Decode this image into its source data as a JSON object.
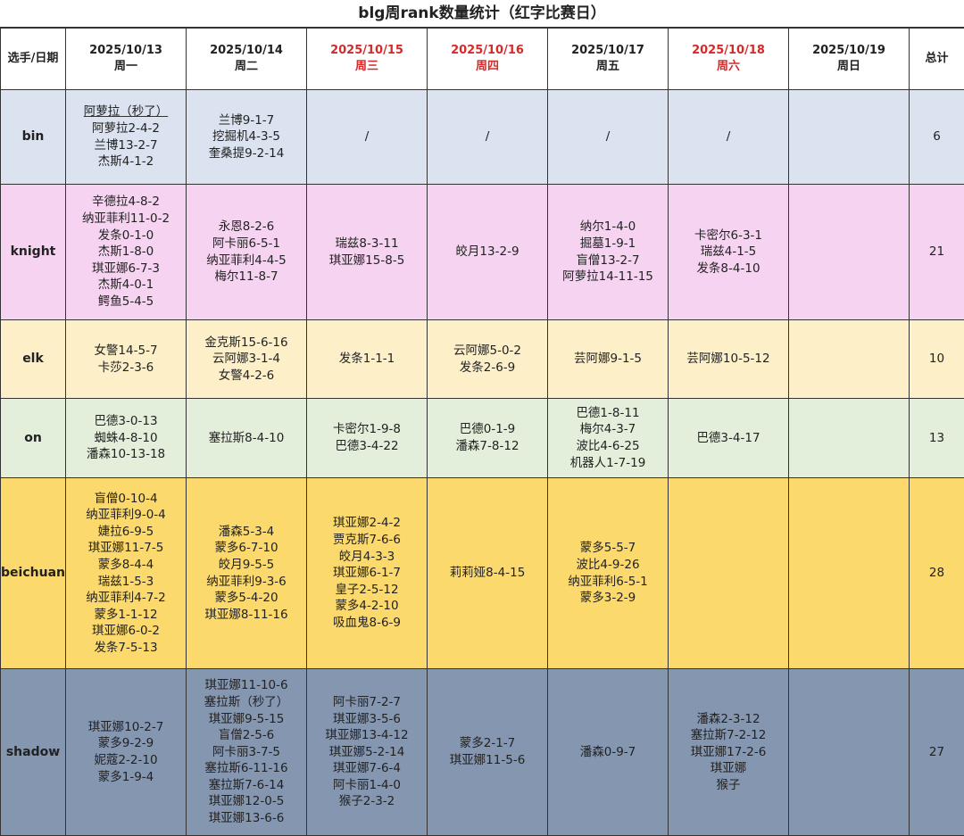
{
  "title": "blg周rank数量统计（红字比赛日）",
  "corner": "选手/日期",
  "total_header": "总计",
  "days": [
    {
      "date": "2025/10/13",
      "weekday": "周一",
      "match_day": false
    },
    {
      "date": "2025/10/14",
      "weekday": "周二",
      "match_day": false
    },
    {
      "date": "2025/10/15",
      "weekday": "周三",
      "match_day": true
    },
    {
      "date": "2025/10/16",
      "weekday": "周四",
      "match_day": true
    },
    {
      "date": "2025/10/17",
      "weekday": "周五",
      "match_day": false
    },
    {
      "date": "2025/10/18",
      "weekday": "周六",
      "match_day": true
    },
    {
      "date": "2025/10/19",
      "weekday": "周日",
      "match_day": false
    }
  ],
  "colors": {
    "match_day": "#d42a2a"
  },
  "rows": [
    {
      "player": "bin",
      "color": "#dbe2f0",
      "total": "6",
      "cells": [
        [
          "阿萝拉（秒了）",
          "阿萝拉2-4-2",
          "兰博13-2-7",
          "杰斯4-1-2"
        ],
        [
          "兰博9-1-7",
          "挖掘机4-3-5",
          "奎桑提9-2-14"
        ],
        [
          "/"
        ],
        [
          "/"
        ],
        [
          "/"
        ],
        [
          "/"
        ],
        []
      ]
    },
    {
      "player": "knight",
      "color": "#f6d4f1",
      "total": "21",
      "cells": [
        [
          "辛德拉4-8-2",
          "纳亚菲利11-0-2",
          "发条0-1-0",
          "杰斯1-8-0",
          "琪亚娜6-7-3",
          "杰斯4-0-1",
          "鳄鱼5-4-5"
        ],
        [
          "永恩8-2-6",
          "阿卡丽6-5-1",
          "纳亚菲利4-4-5",
          "梅尔11-8-7"
        ],
        [
          "瑞兹8-3-11",
          "琪亚娜15-8-5"
        ],
        [
          "皎月13-2-9"
        ],
        [
          "纳尔1-4-0",
          "掘墓1-9-1",
          "盲僧13-2-7",
          "阿萝拉14-11-15"
        ],
        [
          "卡密尔6-3-1",
          "瑞兹4-1-5",
          "发条8-4-10"
        ],
        []
      ]
    },
    {
      "player": "elk",
      "color": "#fdf0c9",
      "total": "10",
      "cells": [
        [
          "女警14-5-7",
          "卡莎2-3-6"
        ],
        [
          "金克斯15-6-16",
          "云阿娜3-1-4",
          "女警4-2-6"
        ],
        [
          "发条1-1-1"
        ],
        [
          "云阿娜5-0-2",
          "发条2-6-9"
        ],
        [
          "芸阿娜9-1-5"
        ],
        [
          "芸阿娜10-5-12"
        ],
        []
      ]
    },
    {
      "player": "on",
      "color": "#e3efdb",
      "total": "13",
      "cells": [
        [
          "巴德3-0-13",
          "蜘蛛4-8-10",
          "潘森10-13-18"
        ],
        [
          "塞拉斯8-4-10"
        ],
        [
          "卡密尔1-9-8",
          "巴德3-4-22"
        ],
        [
          "巴德0-1-9",
          "潘森7-8-12"
        ],
        [
          "巴德1-8-11",
          "梅尔4-3-7",
          "波比4-6-25",
          "机器人1-7-19"
        ],
        [
          "巴德3-4-17"
        ],
        []
      ]
    },
    {
      "player": "beichuan",
      "color": "#fcd96c",
      "total": "28",
      "cells": [
        [
          "盲僧0-10-4",
          "纳亚菲利9-0-4",
          "婕拉6-9-5",
          "琪亚娜11-7-5",
          "蒙多8-4-4",
          "瑞兹1-5-3",
          "纳亚菲利4-7-2",
          "蒙多1-1-12",
          "琪亚娜6-0-2",
          "发条7-5-13"
        ],
        [
          "潘森5-3-4",
          "蒙多6-7-10",
          "皎月9-5-5",
          "纳亚菲利9-3-6",
          "蒙多5-4-20",
          "琪亚娜8-11-16"
        ],
        [
          "琪亚娜2-4-2",
          "贾克斯7-6-6",
          "皎月4-3-3",
          "琪亚娜6-1-7",
          "皇子2-5-12",
          "蒙多4-2-10",
          "吸血鬼8-6-9"
        ],
        [
          "莉莉娅8-4-15"
        ],
        [
          "蒙多5-5-7",
          "波比4-9-26",
          "纳亚菲利6-5-1",
          "蒙多3-2-9"
        ],
        [],
        []
      ]
    },
    {
      "player": "shadow",
      "color": "#8596b0",
      "total": "27",
      "cells": [
        [
          "琪亚娜10-2-7",
          "蒙多9-2-9",
          "妮蔻2-2-10",
          "蒙多1-9-4"
        ],
        [
          "琪亚娜11-10-6",
          "塞拉斯（秒了）",
          "琪亚娜9-5-15",
          "盲僧2-5-6",
          "阿卡丽3-7-5",
          "塞拉斯6-11-16",
          "塞拉斯7-6-14",
          "琪亚娜12-0-5",
          "琪亚娜13-6-6"
        ],
        [
          "阿卡丽7-2-7",
          "琪亚娜3-5-6",
          "琪亚娜13-4-12",
          "琪亚娜5-2-14",
          "琪亚娜7-6-4",
          "阿卡丽1-4-0",
          "猴子2-3-2"
        ],
        [
          "蒙多2-1-7",
          "琪亚娜11-5-6"
        ],
        [
          "潘森0-9-7"
        ],
        [
          "潘森2-3-12",
          "塞拉斯7-2-12",
          "琪亚娜17-2-6",
          "琪亚娜",
          "猴子"
        ],
        []
      ]
    }
  ]
}
